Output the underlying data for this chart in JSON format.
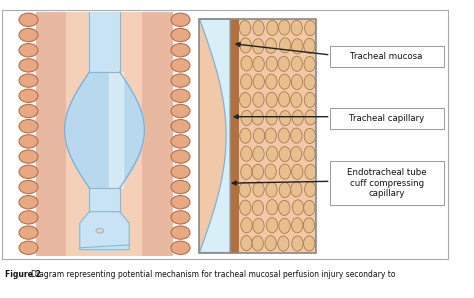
{
  "bg_color": "#ffffff",
  "border_color": "#aaaaaa",
  "trachea_wall_color": "#e8b8a0",
  "lumen_color": "#f5d0b8",
  "chain_fill": "#e8a882",
  "chain_edge": "#b07050",
  "tube_color": "#c8e4f4",
  "tube_edge": "#88b8d0",
  "cuff_color": "#b8d8ee",
  "cuff_edge": "#80aece",
  "inset_bg": "#f2c9a8",
  "inset_border": "#888888",
  "capillary_color": "#b07040",
  "cell_fill": "#e8c090",
  "cell_edge": "#b07848",
  "wedge_color": "#d8eef8",
  "wedge_edge": "#88b0c8",
  "label_box_fill": "#ffffff",
  "label_box_edge": "#999999",
  "arrow_color": "#222222",
  "caption_color": "#111111",
  "label1": "Tracheal mucosa",
  "label2": "Tracheal capillary",
  "label3": "Endotracheal tube\ncuff compressing\ncapillary",
  "caption_bold": "Figure 2 ",
  "caption_rest": "Diagram representing potential mechanism for tracheal mucosal perfusion injury secondary to"
}
